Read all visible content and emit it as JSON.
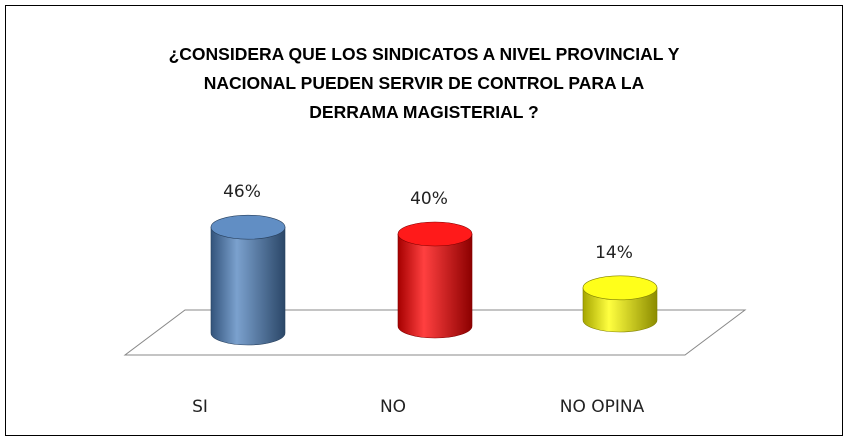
{
  "chart_data": {
    "type": "cylinder-bar",
    "title": "¿CONSIDERA QUE LOS SINDICATOS A NIVEL PROVINCIAL Y\nNACIONAL  PUEDEN SERVIR DE CONTROL PARA LA\nDERRAMA MAGISTERIAL ?",
    "categories": [
      "SI",
      "NO",
      "NO OPINA"
    ],
    "values": [
      46,
      40,
      14
    ],
    "value_labels": [
      "46%",
      "40%",
      "14%"
    ],
    "colors": [
      "#4f81bd",
      "#ff0000",
      "#ffff00"
    ]
  }
}
